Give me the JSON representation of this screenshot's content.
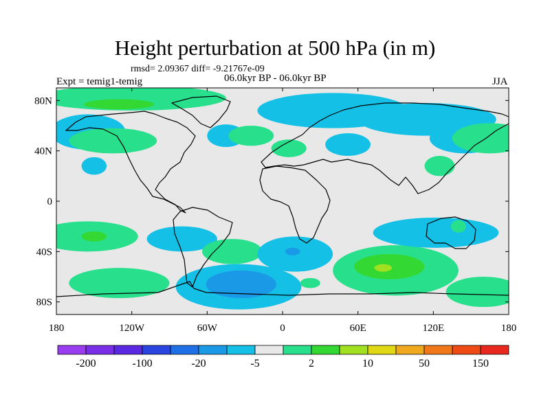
{
  "chart_data": {
    "type": "contour-map",
    "title": "Height perturbation at 500 hPa (in m)",
    "stats": "rmsd= 2.09367 diff= -9.21767e-09",
    "experiment": "Expt = temig1-temig",
    "period": "06.0kyr BP - 06.0kyr BP",
    "season": "JJA",
    "xlim": [
      -180,
      180
    ],
    "ylim": [
      -90,
      90
    ],
    "lon_ticks": [
      -180,
      -120,
      -60,
      0,
      60,
      120,
      180
    ],
    "lon_tick_labels": [
      "180",
      "120W",
      "60W",
      "0",
      "60E",
      "120E",
      "180"
    ],
    "lat_ticks": [
      80,
      40,
      0,
      -40,
      -80
    ],
    "lat_tick_labels": [
      "80N",
      "40N",
      "0",
      "40S",
      "80S"
    ],
    "colorbar": {
      "colors": [
        "#9a3cf0",
        "#7a2ee8",
        "#5a28e0",
        "#2a44e0",
        "#1f6fe6",
        "#1a9ae6",
        "#14c0e6",
        "#e8e8e8",
        "#28e08c",
        "#34d832",
        "#a0e020",
        "#e0d814",
        "#f0a81c",
        "#f07818",
        "#f04a14",
        "#e8281e"
      ],
      "boundaries": [
        -200,
        -100,
        -20,
        -5,
        2,
        10,
        50,
        150
      ],
      "tick_labels": [
        "-200",
        "-100",
        "-20",
        "-5",
        "2",
        "10",
        "50",
        "150"
      ]
    },
    "regions": [
      {
        "lon": -120,
        "lat": 82,
        "rx": 75,
        "ry": 10,
        "level": 8
      },
      {
        "lon": -130,
        "lat": 77,
        "rx": 28,
        "ry": 4,
        "level": 9
      },
      {
        "lon": -155,
        "lat": 55,
        "rx": 30,
        "ry": 14,
        "level": 6
      },
      {
        "lon": -135,
        "lat": 48,
        "rx": 35,
        "ry": 10,
        "level": 8
      },
      {
        "lon": -150,
        "lat": 28,
        "rx": 10,
        "ry": 7,
        "level": 6
      },
      {
        "lon": -45,
        "lat": 52,
        "rx": 15,
        "ry": 9,
        "level": 6
      },
      {
        "lon": 5,
        "lat": 42,
        "rx": 14,
        "ry": 7,
        "level": 8
      },
      {
        "lon": -25,
        "lat": 52,
        "rx": 18,
        "ry": 8,
        "level": 8
      },
      {
        "lon": 40,
        "lat": 72,
        "rx": 60,
        "ry": 14,
        "level": 6
      },
      {
        "lon": 52,
        "lat": 45,
        "rx": 18,
        "ry": 9,
        "level": 6
      },
      {
        "lon": 115,
        "lat": 65,
        "rx": 55,
        "ry": 13,
        "level": 6
      },
      {
        "lon": 145,
        "lat": 50,
        "rx": 28,
        "ry": 12,
        "level": 6
      },
      {
        "lon": 165,
        "lat": 50,
        "rx": 30,
        "ry": 12,
        "level": 8
      },
      {
        "lon": 125,
        "lat": 28,
        "rx": 12,
        "ry": 8,
        "level": 8
      },
      {
        "lon": -155,
        "lat": -28,
        "rx": 40,
        "ry": 12,
        "level": 8
      },
      {
        "lon": -150,
        "lat": -28,
        "rx": 10,
        "ry": 4,
        "level": 9
      },
      {
        "lon": -130,
        "lat": -65,
        "rx": 40,
        "ry": 12,
        "level": 8
      },
      {
        "lon": -80,
        "lat": -30,
        "rx": 28,
        "ry": 10,
        "level": 6
      },
      {
        "lon": -40,
        "lat": -40,
        "rx": 24,
        "ry": 10,
        "level": 8
      },
      {
        "lon": -35,
        "lat": -68,
        "rx": 50,
        "ry": 18,
        "level": 6
      },
      {
        "lon": -33,
        "lat": -66,
        "rx": 28,
        "ry": 11,
        "level": 5
      },
      {
        "lon": 10,
        "lat": -42,
        "rx": 30,
        "ry": 14,
        "level": 6
      },
      {
        "lon": 8,
        "lat": -40,
        "rx": 6,
        "ry": 3,
        "level": 5
      },
      {
        "lon": 22,
        "lat": -65,
        "rx": 8,
        "ry": 4,
        "level": 8
      },
      {
        "lon": 90,
        "lat": -55,
        "rx": 50,
        "ry": 20,
        "level": 8
      },
      {
        "lon": 85,
        "lat": -52,
        "rx": 28,
        "ry": 10,
        "level": 9
      },
      {
        "lon": 80,
        "lat": -53,
        "rx": 7,
        "ry": 3,
        "level": 10
      },
      {
        "lon": 122,
        "lat": -25,
        "rx": 50,
        "ry": 12,
        "level": 6
      },
      {
        "lon": 140,
        "lat": -20,
        "rx": 6,
        "ry": 5,
        "level": 8
      },
      {
        "lon": 160,
        "lat": -72,
        "rx": 30,
        "ry": 12,
        "level": 8
      }
    ]
  }
}
